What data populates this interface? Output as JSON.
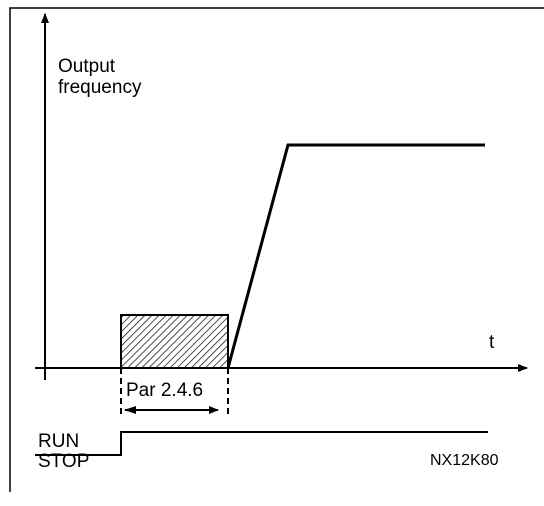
{
  "labels": {
    "y_axis": [
      "Output",
      "frequency"
    ],
    "x_axis": "t",
    "parameter": "Par 2.4.6",
    "run": "RUN",
    "stop": "STOP",
    "figure_id": "NX12K80"
  }
}
